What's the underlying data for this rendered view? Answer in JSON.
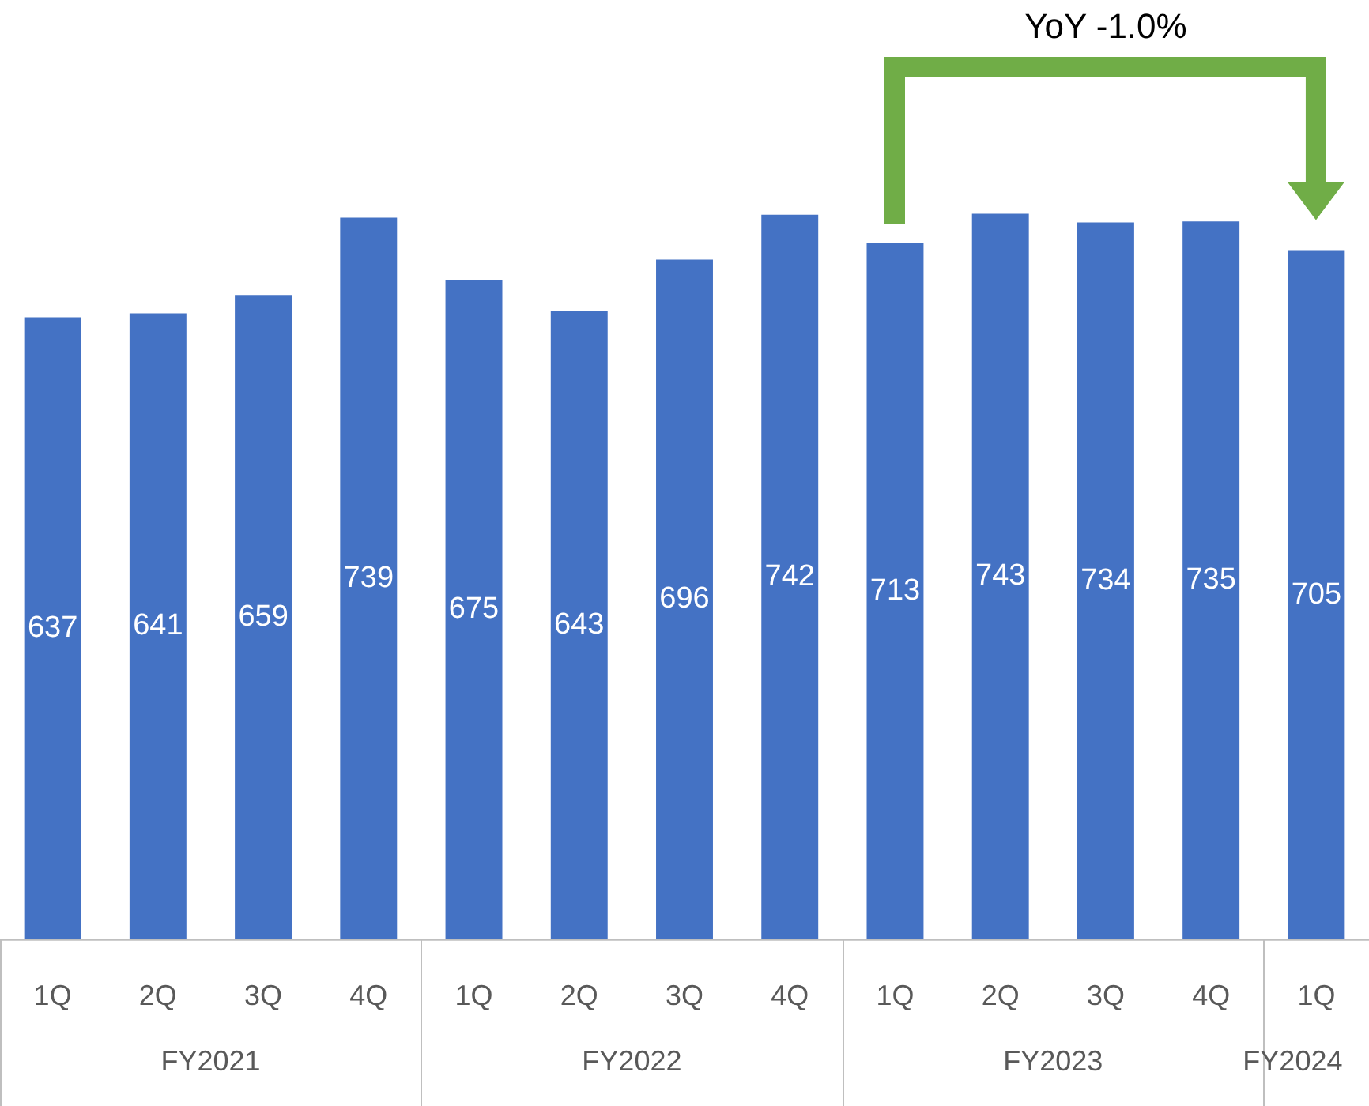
{
  "chart_data": {
    "type": "bar",
    "categories": [
      "1Q",
      "2Q",
      "3Q",
      "4Q",
      "1Q",
      "2Q",
      "3Q",
      "4Q",
      "1Q",
      "2Q",
      "3Q",
      "4Q",
      "1Q"
    ],
    "values": [
      637,
      641,
      659,
      739,
      675,
      643,
      696,
      742,
      713,
      743,
      734,
      735,
      705
    ],
    "color": "#4472c4",
    "data_labels": true,
    "grid": false,
    "legend": false,
    "annotations": [
      "FY2021",
      "FY2022",
      "FY2023",
      "FY2024",
      "YoY -1.0%"
    ]
  }
}
